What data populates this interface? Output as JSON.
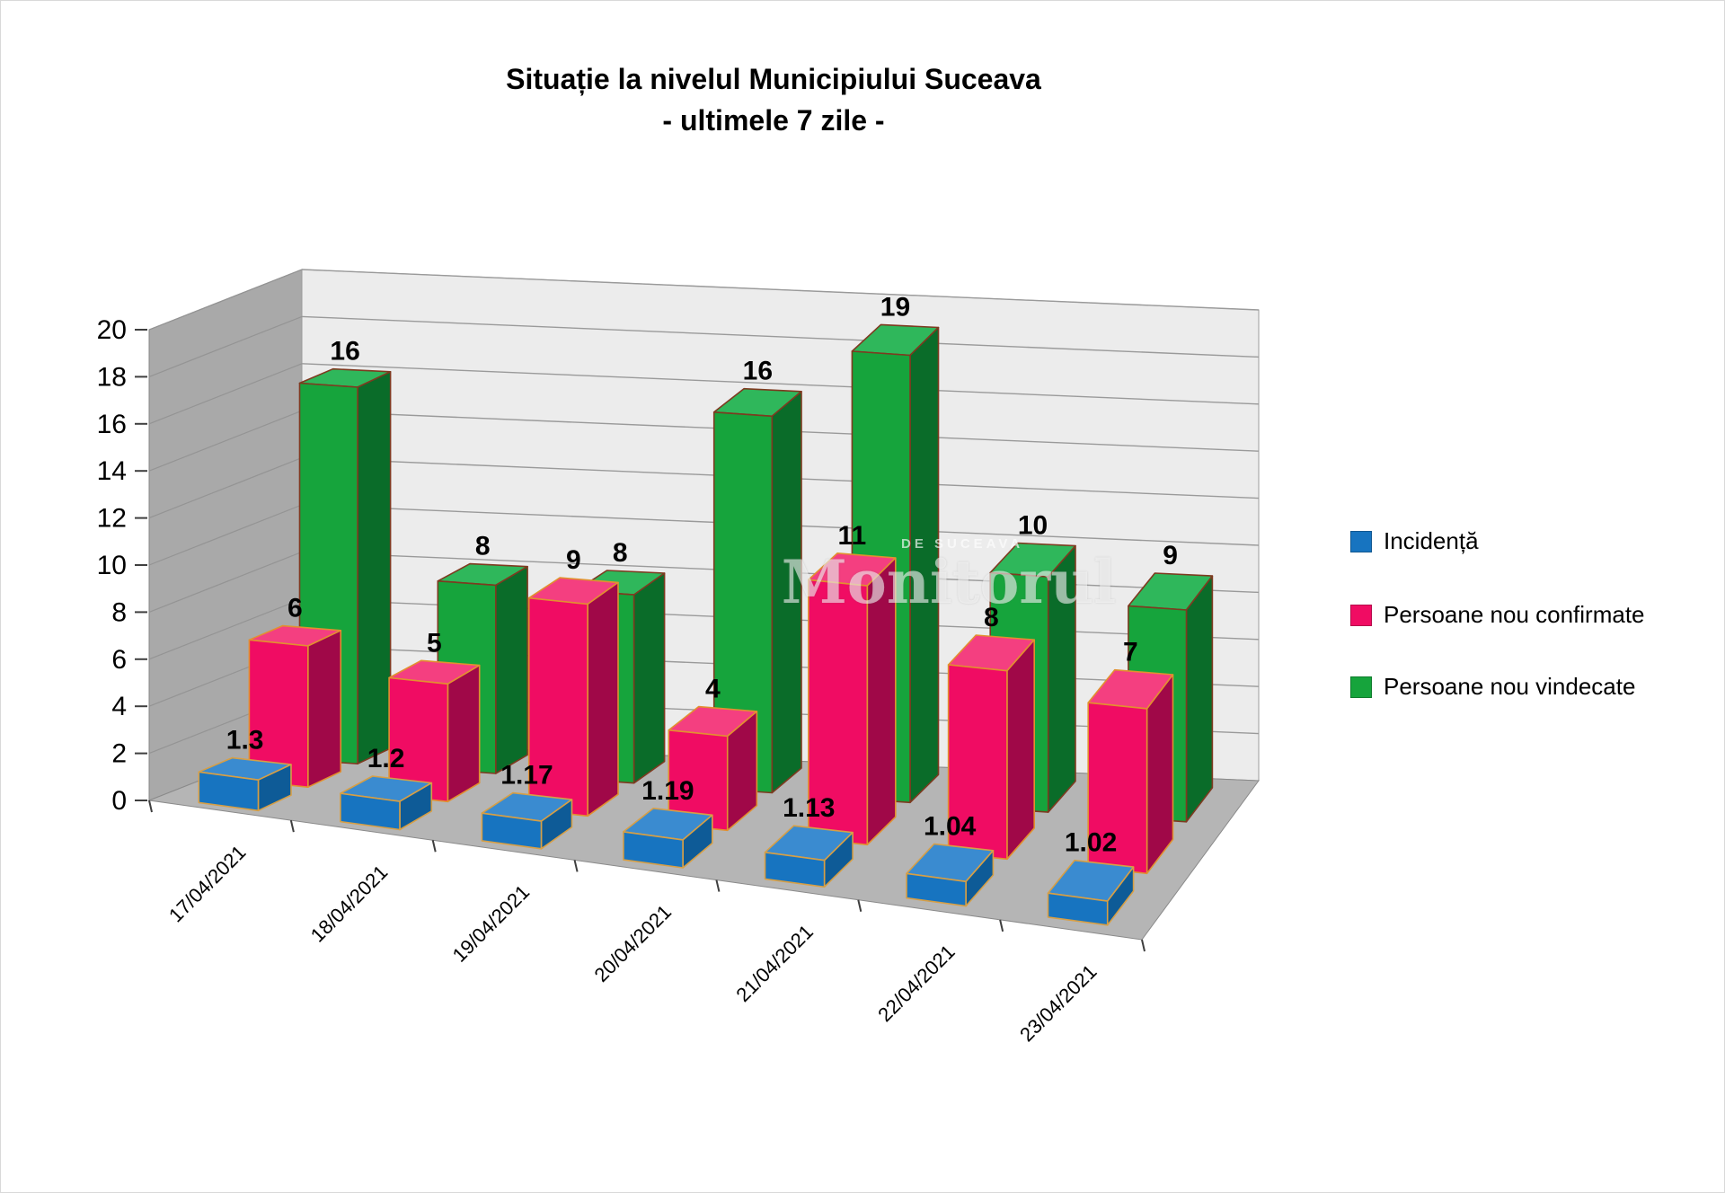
{
  "title": {
    "line1": "Situație la nivelul Municipiului Suceava",
    "line2": "- ultimele 7 zile -"
  },
  "watermark": {
    "big": "Monitorul",
    "small": "DE SUCEAVA"
  },
  "legend": [
    {
      "label": "Incidență"
    },
    {
      "label": "Persoane nou confirmate"
    },
    {
      "label": "Persoane nou vindecate"
    }
  ],
  "chart_data": {
    "type": "bar",
    "style": "3d-column",
    "title": "Situație la nivelul Municipiului Suceava - ultimele 7 zile -",
    "categories": [
      "17/04/2021",
      "18/04/2021",
      "19/04/2021",
      "20/04/2021",
      "21/04/2021",
      "22/04/2021",
      "23/04/2021"
    ],
    "series": [
      {
        "name": "Incidență",
        "values": [
          1.3,
          1.2,
          1.17,
          1.19,
          1.13,
          1.04,
          1.02
        ],
        "labels": [
          "1.3",
          "1.2",
          "1.17",
          "1.19",
          "1.13",
          "1.04",
          "1.02"
        ],
        "color_front": "#1774C0",
        "color_top": "#3A8BD0",
        "color_side": "#0E5B97",
        "color_edge": "#D79F45"
      },
      {
        "name": "Persoane nou confirmate",
        "values": [
          6,
          5,
          9,
          4,
          11,
          8,
          7
        ],
        "labels": [
          "6",
          "5",
          "9",
          "4",
          "11",
          "8",
          "7"
        ],
        "color_front": "#F00C63",
        "color_top": "#F43F80",
        "color_side": "#A00848",
        "color_edge": "#E2902F"
      },
      {
        "name": "Persoane nou vindecate",
        "values": [
          16,
          8,
          8,
          16,
          19,
          10,
          9
        ],
        "labels": [
          "16",
          "8",
          "8",
          "16",
          "19",
          "10",
          "9"
        ],
        "color_front": "#16A43C",
        "color_top": "#2FB75B",
        "color_side": "#0A6C29",
        "color_edge": "#7E3A20"
      }
    ],
    "ylim": [
      0,
      20
    ],
    "ytick_step": 2,
    "yticks": [
      0,
      2,
      4,
      6,
      8,
      10,
      12,
      14,
      16,
      18,
      20
    ],
    "grid": true,
    "legend_position": "right",
    "wall_color": "#ececec",
    "side_wall_color": "#a9a9a9",
    "floor_color": "#b5b5b5"
  }
}
